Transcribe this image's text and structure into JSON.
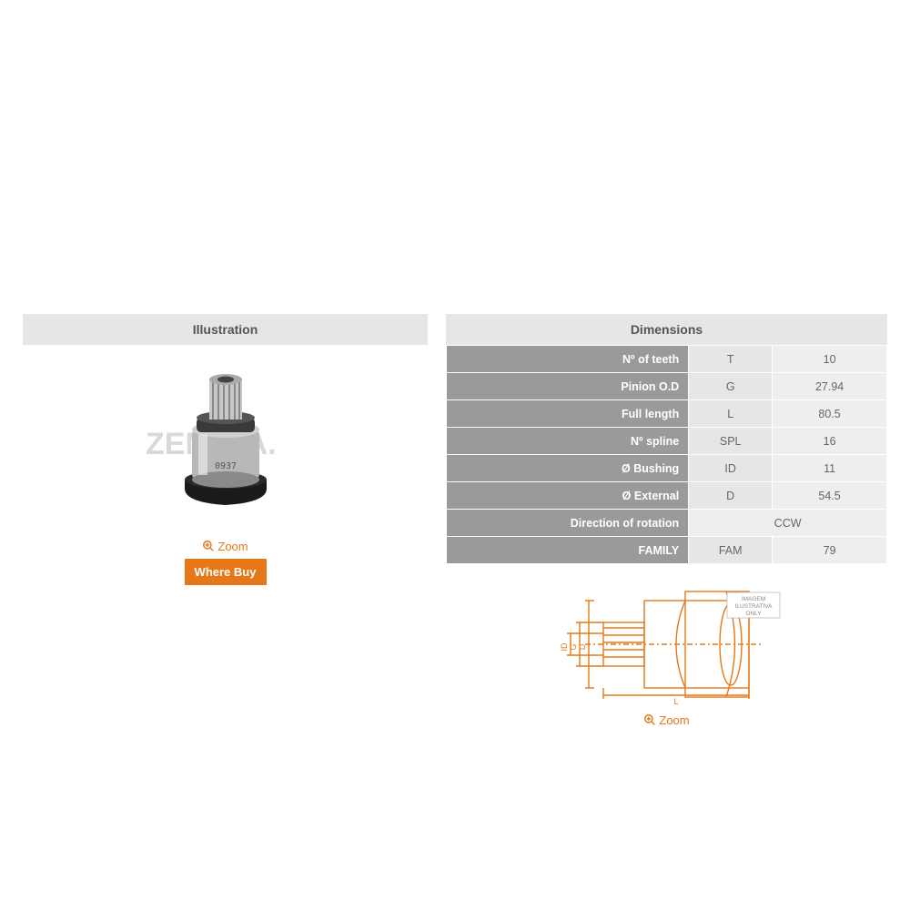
{
  "headers": {
    "illustration": "Illustration",
    "dimensions": "Dimensions"
  },
  "zoom_label": "Zoom",
  "where_buy_label": "Where Buy",
  "colors": {
    "accent": "#e67817",
    "header_bg": "#e6e6e6",
    "label_bg": "#999a9c",
    "code_bg": "#e6e6e6",
    "value_bg": "#eeeeee",
    "diagram_stroke": "#e67817",
    "watermark": "#d9d9d9"
  },
  "watermark_text": "ZEN S.A.",
  "part_stamp": "0937",
  "dimensions_table": [
    {
      "label": "Nº of teeth",
      "code": "T",
      "value": "10"
    },
    {
      "label": "Pinion O.D",
      "code": "G",
      "value": "27.94"
    },
    {
      "label": "Full length",
      "code": "L",
      "value": "80.5"
    },
    {
      "label": "Nº spline",
      "code": "SPL",
      "value": "16"
    },
    {
      "label": "Ø Bushing",
      "code": "ID",
      "value": "11"
    },
    {
      "label": "Ø External",
      "code": "D",
      "value": "54.5"
    },
    {
      "label": "Direction of rotation",
      "code": "",
      "value": "CCW"
    },
    {
      "label": "FAMILY",
      "code": "FAM",
      "value": "79"
    }
  ],
  "diagram": {
    "dim_labels": [
      "D",
      "G",
      "ID",
      "L"
    ],
    "badge": "IMAGEM\nILUSTRATIVA\nONLY"
  }
}
